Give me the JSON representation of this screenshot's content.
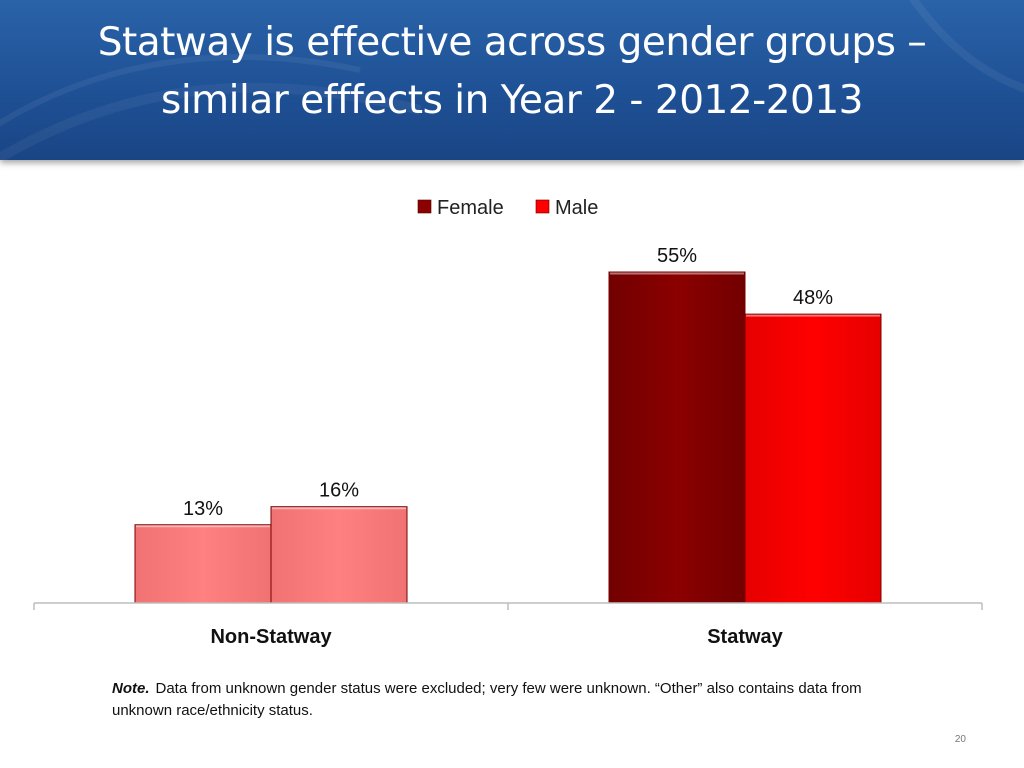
{
  "slide": {
    "title_line1": "Statway is effective across gender groups –",
    "title_line2": "similar efffects in Year 2 - 2012-2013",
    "note_label": "Note.",
    "note_text": "Data from unknown gender status were excluded; very few were unknown. “Other” also contains data from unknown race/ethnicity status.",
    "page_number": "20"
  },
  "chart_data": {
    "type": "bar",
    "categories": [
      "Non-Statway",
      "Statway"
    ],
    "series": [
      {
        "name": "Female",
        "values": [
          13,
          55
        ],
        "labels": [
          "13%",
          "55%"
        ],
        "color": "#8b0000"
      },
      {
        "name": "Male",
        "values": [
          16,
          48
        ],
        "labels": [
          "16%",
          "48%"
        ],
        "color": "#ff0000"
      }
    ],
    "non_statway_color": "#ff8080",
    "legend_position": "top-center",
    "grid": false,
    "ylim": [
      0,
      60
    ]
  }
}
